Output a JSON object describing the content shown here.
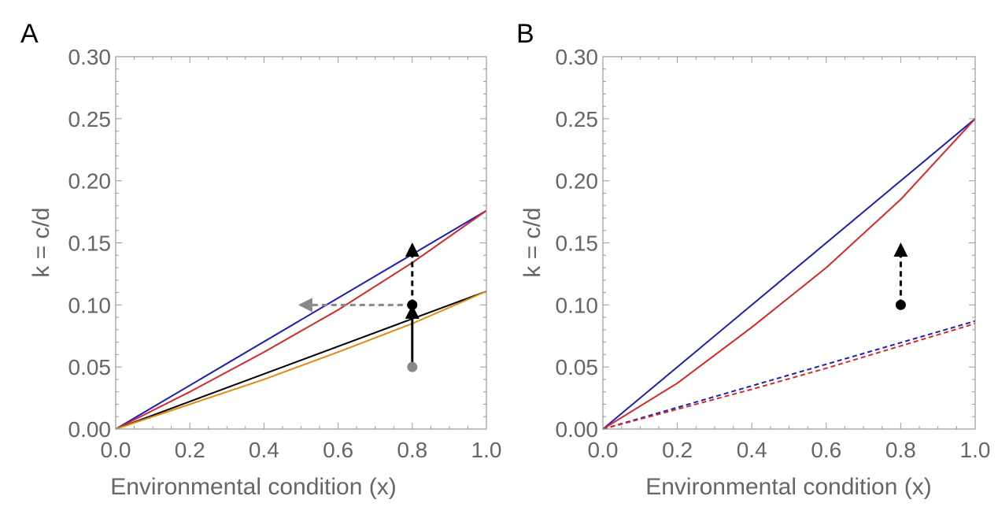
{
  "chart_data": [
    {
      "type": "line",
      "panel_label": "A",
      "xlabel": "Environmental condition (x)",
      "ylabel": "k = c/d",
      "xlim": [
        0,
        1
      ],
      "ylim": [
        0,
        0.3
      ],
      "x_ticks": [
        "0.0",
        "0.2",
        "0.4",
        "0.6",
        "0.8",
        "1.0"
      ],
      "y_ticks": [
        "0.00",
        "0.05",
        "0.10",
        "0.15",
        "0.20",
        "0.25",
        "0.30"
      ],
      "grid": false,
      "series": [
        {
          "color": "#1f1fb4",
          "style": "solid",
          "x": [
            0,
            1
          ],
          "y": [
            0,
            0.176
          ]
        },
        {
          "color": "#d42a2a",
          "style": "solid",
          "x": [
            0,
            0.2,
            0.4,
            0.6,
            0.8,
            1.0
          ],
          "y": [
            0,
            0.03,
            0.062,
            0.096,
            0.134,
            0.176
          ]
        },
        {
          "color": "#000000",
          "style": "solid",
          "x": [
            0,
            1
          ],
          "y": [
            0,
            0.111
          ]
        },
        {
          "color": "#e08a10",
          "style": "solid",
          "x": [
            0,
            0.2,
            0.4,
            0.6,
            0.8,
            1.0
          ],
          "y": [
            0,
            0.02,
            0.04,
            0.062,
            0.085,
            0.111
          ]
        }
      ],
      "points": [
        {
          "x": 0.8,
          "y": 0.05,
          "color": "#888888"
        },
        {
          "x": 0.8,
          "y": 0.1,
          "color": "#000000"
        }
      ],
      "arrows": [
        {
          "from": [
            0.8,
            0.05
          ],
          "to": [
            0.8,
            0.098
          ],
          "color": "#000000",
          "style": "solid"
        },
        {
          "from": [
            0.8,
            0.1
          ],
          "to": [
            0.8,
            0.148
          ],
          "color": "#000000",
          "style": "dashed"
        },
        {
          "from": [
            0.8,
            0.1
          ],
          "to": [
            0.5,
            0.1
          ],
          "color": "#888888",
          "style": "dashed"
        }
      ]
    },
    {
      "type": "line",
      "panel_label": "B",
      "xlabel": "Environmental condition (x)",
      "ylabel": "k = c/d",
      "xlim": [
        0,
        1
      ],
      "ylim": [
        0,
        0.3
      ],
      "x_ticks": [
        "0.0",
        "0.2",
        "0.4",
        "0.6",
        "0.8",
        "1.0"
      ],
      "y_ticks": [
        "0.00",
        "0.05",
        "0.10",
        "0.15",
        "0.20",
        "0.25",
        "0.30"
      ],
      "grid": false,
      "series": [
        {
          "color": "#1f1fb4",
          "style": "solid",
          "x": [
            0,
            1
          ],
          "y": [
            0,
            0.25
          ]
        },
        {
          "color": "#d42a2a",
          "style": "solid",
          "x": [
            0,
            0.2,
            0.4,
            0.6,
            0.8,
            1.0
          ],
          "y": [
            0,
            0.037,
            0.082,
            0.13,
            0.185,
            0.25
          ]
        },
        {
          "color": "#1f1fb4",
          "style": "dashed",
          "x": [
            0,
            1
          ],
          "y": [
            0,
            0.087
          ]
        },
        {
          "color": "#d42a2a",
          "style": "dashed",
          "x": [
            0,
            0.2,
            0.4,
            0.6,
            0.8,
            1.0
          ],
          "y": [
            0,
            0.016,
            0.032,
            0.049,
            0.067,
            0.085
          ]
        }
      ],
      "points": [
        {
          "x": 0.8,
          "y": 0.1,
          "color": "#000000"
        }
      ],
      "arrows": [
        {
          "from": [
            0.8,
            0.1
          ],
          "to": [
            0.8,
            0.148
          ],
          "color": "#000000",
          "style": "dashed"
        }
      ]
    }
  ]
}
